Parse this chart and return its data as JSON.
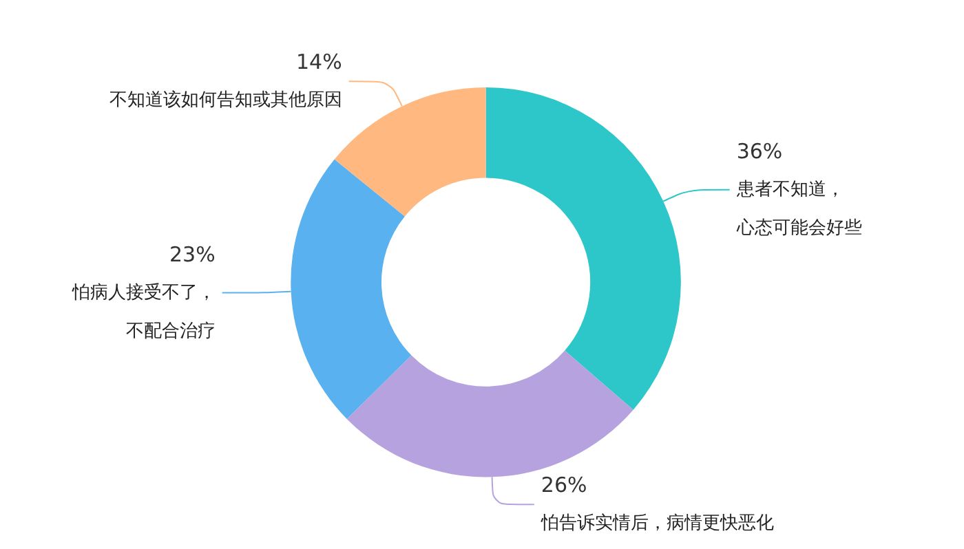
{
  "chart_data": {
    "type": "donut",
    "categories": [
      "患者不知道，心态可能会好些",
      "怕告诉实情后，病情更快恶化",
      "怕病人接受不了，不配合治疗",
      "不知道该如何告知或其他原因"
    ],
    "values": [
      36,
      26,
      23,
      14
    ],
    "value_labels": [
      "36%",
      "26%",
      "23%",
      "14%"
    ],
    "colors": [
      "#2ec7c9",
      "#b6a2de",
      "#5ab1ef",
      "#ffb980"
    ],
    "legend": false
  }
}
